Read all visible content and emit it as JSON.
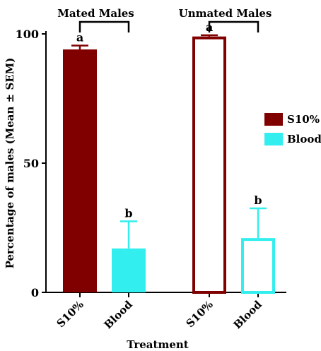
{
  "chart_data": {
    "type": "bar",
    "ylabel": "Percentage of males (Mean ± SEM)",
    "xlabel": "Treatment",
    "ylim": [
      0,
      100
    ],
    "yticks": [
      0,
      50,
      100
    ],
    "grid": false,
    "legend_position": "right",
    "legend": [
      {
        "name": "S10%",
        "color": "#800000"
      },
      {
        "name": "Blood",
        "color": "#33eeee"
      }
    ],
    "groups": [
      {
        "label": "Mated Males",
        "filled": true,
        "bars": [
          {
            "category": "S10%",
            "series": "S10%",
            "value": 94,
            "error": 1.5,
            "letter": "a"
          },
          {
            "category": "Blood",
            "series": "Blood",
            "value": 17,
            "error": 10.5,
            "letter": "b"
          }
        ]
      },
      {
        "label": "Unmated Males",
        "filled": false,
        "bars": [
          {
            "category": "S10%",
            "series": "S10%",
            "value": 99,
            "error": 0.5,
            "letter": "a"
          },
          {
            "category": "Blood",
            "series": "Blood",
            "value": 21,
            "error": 11.5,
            "letter": "b"
          }
        ]
      }
    ]
  }
}
